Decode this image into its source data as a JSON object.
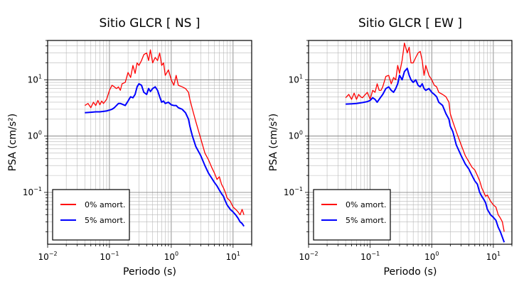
{
  "chart_data": [
    {
      "type": "line",
      "title": "Sitio GLCR [ NS ]",
      "xlabel": "Periodo (s)",
      "ylabel": "PSA (cm/s²)",
      "xscale": "log",
      "yscale": "log",
      "xlim": [
        0.01,
        20
      ],
      "ylim": [
        0.012,
        50
      ],
      "xticks": [
        {
          "value": 0.01,
          "base": "10",
          "exp": "−2"
        },
        {
          "value": 0.1,
          "base": "10",
          "exp": "−1"
        },
        {
          "value": 1,
          "base": "10",
          "exp": "0"
        },
        {
          "value": 10,
          "base": "10",
          "exp": "1"
        }
      ],
      "yticks": [
        {
          "value": 0.1,
          "base": "10",
          "exp": "−1"
        },
        {
          "value": 1,
          "base": "10",
          "exp": "0"
        },
        {
          "value": 10,
          "base": "10",
          "exp": "1"
        }
      ],
      "grid": true,
      "legend_position": "bottom-left",
      "series": [
        {
          "name": "0% amort.",
          "color": "#ff0000",
          "x": [
            0.04,
            0.045,
            0.05,
            0.055,
            0.06,
            0.065,
            0.07,
            0.075,
            0.08,
            0.09,
            0.1,
            0.11,
            0.12,
            0.13,
            0.14,
            0.15,
            0.16,
            0.18,
            0.2,
            0.22,
            0.24,
            0.26,
            0.28,
            0.3,
            0.33,
            0.36,
            0.4,
            0.43,
            0.46,
            0.5,
            0.55,
            0.6,
            0.65,
            0.7,
            0.75,
            0.8,
            0.9,
            1.0,
            1.1,
            1.2,
            1.3,
            1.5,
            1.7,
            1.9,
            2.0,
            2.2,
            2.5,
            3.0,
            3.5,
            4.0,
            4.5,
            5.0,
            5.5,
            6.0,
            6.5,
            7.0,
            7.5,
            8.0,
            9.0,
            10.0,
            11.0,
            12.0,
            13.0,
            14.0,
            15.0
          ],
          "y": [
            3.5,
            3.8,
            3.2,
            4.0,
            3.5,
            4.3,
            3.6,
            4.2,
            3.8,
            4.5,
            6.5,
            8.0,
            7.5,
            7.0,
            7.5,
            6.5,
            8.5,
            9.0,
            13.5,
            11.0,
            18.0,
            13.0,
            20.0,
            18.0,
            22.0,
            28.0,
            30.0,
            22.0,
            34.0,
            20.0,
            25.0,
            22.0,
            30.0,
            18.0,
            20.0,
            12.0,
            15.0,
            10.0,
            8.0,
            12.0,
            8.0,
            7.5,
            7.0,
            6.0,
            4.5,
            3.0,
            1.8,
            0.9,
            0.5,
            0.38,
            0.28,
            0.22,
            0.17,
            0.19,
            0.14,
            0.12,
            0.1,
            0.08,
            0.07,
            0.055,
            0.05,
            0.045,
            0.04,
            0.05,
            0.04
          ]
        },
        {
          "name": "5% amort.",
          "color": "#0000ff",
          "x": [
            0.04,
            0.05,
            0.06,
            0.07,
            0.08,
            0.09,
            0.1,
            0.11,
            0.12,
            0.13,
            0.14,
            0.15,
            0.16,
            0.18,
            0.2,
            0.22,
            0.24,
            0.26,
            0.28,
            0.3,
            0.33,
            0.36,
            0.4,
            0.43,
            0.46,
            0.5,
            0.55,
            0.6,
            0.65,
            0.7,
            0.75,
            0.8,
            0.9,
            1.0,
            1.1,
            1.2,
            1.3,
            1.5,
            1.7,
            1.9,
            2.0,
            2.2,
            2.5,
            3.0,
            3.5,
            4.0,
            4.5,
            5.0,
            5.5,
            6.0,
            6.5,
            7.0,
            7.5,
            8.0,
            9.0,
            10.0,
            11.0,
            12.0,
            13.0,
            14.0,
            15.0
          ],
          "y": [
            2.6,
            2.65,
            2.7,
            2.7,
            2.75,
            2.8,
            2.9,
            3.0,
            3.2,
            3.5,
            3.8,
            3.8,
            3.7,
            3.5,
            4.2,
            5.0,
            4.8,
            5.5,
            7.5,
            8.5,
            8.0,
            6.0,
            5.5,
            7.0,
            6.2,
            7.0,
            7.5,
            6.5,
            5.0,
            4.0,
            4.2,
            3.8,
            4.0,
            3.6,
            3.5,
            3.5,
            3.2,
            3.0,
            2.6,
            2.0,
            1.5,
            1.0,
            0.65,
            0.45,
            0.3,
            0.22,
            0.18,
            0.15,
            0.13,
            0.11,
            0.095,
            0.085,
            0.07,
            0.06,
            0.05,
            0.045,
            0.04,
            0.035,
            0.03,
            0.028,
            0.025
          ]
        }
      ]
    },
    {
      "type": "line",
      "title": "Sitio GLCR [ EW ]",
      "xlabel": "Periodo (s)",
      "ylabel": "PSA (cm/s²)",
      "xscale": "log",
      "yscale": "log",
      "xlim": [
        0.01,
        20
      ],
      "ylim": [
        0.012,
        50
      ],
      "xticks": [
        {
          "value": 0.01,
          "base": "10",
          "exp": "−2"
        },
        {
          "value": 0.1,
          "base": "10",
          "exp": "−1"
        },
        {
          "value": 1,
          "base": "10",
          "exp": "0"
        },
        {
          "value": 10,
          "base": "10",
          "exp": "1"
        }
      ],
      "yticks": [
        {
          "value": 0.1,
          "base": "10",
          "exp": "−1"
        },
        {
          "value": 1,
          "base": "10",
          "exp": "0"
        },
        {
          "value": 10,
          "base": "10",
          "exp": "1"
        }
      ],
      "grid": true,
      "legend_position": "bottom-left",
      "series": [
        {
          "name": "0% amort.",
          "color": "#ff0000",
          "x": [
            0.04,
            0.045,
            0.05,
            0.055,
            0.06,
            0.065,
            0.07,
            0.075,
            0.08,
            0.09,
            0.1,
            0.11,
            0.12,
            0.13,
            0.14,
            0.15,
            0.16,
            0.18,
            0.2,
            0.22,
            0.24,
            0.26,
            0.28,
            0.3,
            0.33,
            0.36,
            0.4,
            0.43,
            0.46,
            0.5,
            0.55,
            0.6,
            0.65,
            0.7,
            0.75,
            0.8,
            0.9,
            1.0,
            1.1,
            1.2,
            1.3,
            1.5,
            1.7,
            1.9,
            2.0,
            2.2,
            2.5,
            3.0,
            3.5,
            4.0,
            4.5,
            5.0,
            5.5,
            6.0,
            6.5,
            7.0,
            7.5,
            8.0,
            9.0,
            10.0,
            11.0,
            12.0,
            13.0,
            14.0,
            15.0
          ],
          "y": [
            4.8,
            5.5,
            4.5,
            5.8,
            4.5,
            5.5,
            5.0,
            4.8,
            5.2,
            6.0,
            4.5,
            6.5,
            6.0,
            8.5,
            6.5,
            6.5,
            7.5,
            11.5,
            12.0,
            8.5,
            11.0,
            10.0,
            18.0,
            13.0,
            22.0,
            45.0,
            30.0,
            38.0,
            20.0,
            20.0,
            25.0,
            30.0,
            32.0,
            22.0,
            12.0,
            18.0,
            12.0,
            10.0,
            8.0,
            7.5,
            6.0,
            5.5,
            5.0,
            4.0,
            2.5,
            1.8,
            1.2,
            0.7,
            0.45,
            0.35,
            0.28,
            0.25,
            0.2,
            0.16,
            0.12,
            0.1,
            0.085,
            0.09,
            0.07,
            0.06,
            0.055,
            0.04,
            0.035,
            0.03,
            0.02
          ]
        },
        {
          "name": "5% amort.",
          "color": "#0000ff",
          "x": [
            0.04,
            0.05,
            0.06,
            0.07,
            0.08,
            0.09,
            0.1,
            0.11,
            0.12,
            0.13,
            0.14,
            0.15,
            0.16,
            0.18,
            0.2,
            0.22,
            0.24,
            0.26,
            0.28,
            0.3,
            0.33,
            0.36,
            0.4,
            0.43,
            0.46,
            0.5,
            0.55,
            0.6,
            0.65,
            0.7,
            0.75,
            0.8,
            0.9,
            1.0,
            1.1,
            1.2,
            1.3,
            1.5,
            1.7,
            1.9,
            2.0,
            2.2,
            2.5,
            3.0,
            3.5,
            4.0,
            4.5,
            5.0,
            5.5,
            6.0,
            6.5,
            7.0,
            7.5,
            8.0,
            9.0,
            10.0,
            11.0,
            12.0,
            13.0,
            14.0,
            15.0
          ],
          "y": [
            3.7,
            3.75,
            3.8,
            3.9,
            4.0,
            4.1,
            4.3,
            4.8,
            4.5,
            4.0,
            4.5,
            5.0,
            5.5,
            7.0,
            7.5,
            6.5,
            6.0,
            7.0,
            8.5,
            12.0,
            10.0,
            14.0,
            16.0,
            12.0,
            10.0,
            9.0,
            10.0,
            8.0,
            7.5,
            8.5,
            7.0,
            6.5,
            7.0,
            6.0,
            5.5,
            5.0,
            4.0,
            3.5,
            2.5,
            2.0,
            1.5,
            1.2,
            0.7,
            0.45,
            0.32,
            0.26,
            0.2,
            0.16,
            0.14,
            0.1,
            0.085,
            0.075,
            0.065,
            0.05,
            0.04,
            0.036,
            0.032,
            0.024,
            0.02,
            0.016,
            0.013
          ]
        }
      ]
    }
  ]
}
